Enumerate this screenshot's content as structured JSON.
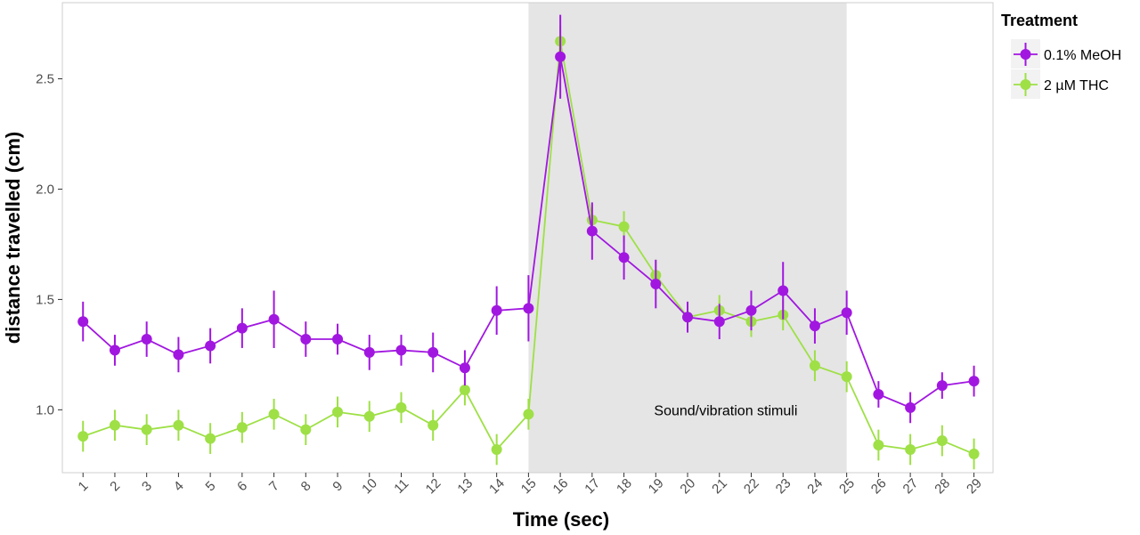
{
  "chart_data": {
    "type": "line",
    "xlabel": "Time (sec)",
    "ylabel": "distance travelled (cm)",
    "x": [
      1,
      2,
      3,
      4,
      5,
      6,
      7,
      8,
      9,
      10,
      11,
      12,
      13,
      14,
      15,
      16,
      17,
      18,
      19,
      20,
      21,
      22,
      23,
      24,
      25,
      26,
      27,
      28,
      29
    ],
    "xlim": [
      0.35,
      29.6
    ],
    "ylim": [
      0.715,
      2.845
    ],
    "yticks": [
      1.0,
      1.5,
      2.0,
      2.5
    ],
    "ytick_labels": [
      "1.0",
      "1.5",
      "2.0",
      "2.5"
    ],
    "grid": false,
    "legend": {
      "title": "Treatment",
      "position": "right"
    },
    "shaded_region": {
      "x_start": 15,
      "x_end": 25,
      "color": "#e5e5e5"
    },
    "annotation": {
      "text": "Sound/vibration stimuli",
      "x": 21.2,
      "y": 1.0
    },
    "series": [
      {
        "name": "0.1% MeOH",
        "color": "#a117e0",
        "values": [
          1.4,
          1.27,
          1.32,
          1.25,
          1.29,
          1.37,
          1.41,
          1.32,
          1.32,
          1.26,
          1.27,
          1.26,
          1.19,
          1.45,
          1.46,
          2.6,
          1.81,
          1.69,
          1.57,
          1.42,
          1.4,
          1.45,
          1.54,
          1.38,
          1.44,
          1.07,
          1.01,
          1.11,
          1.13
        ],
        "errors": [
          0.09,
          0.07,
          0.08,
          0.08,
          0.08,
          0.09,
          0.13,
          0.08,
          0.07,
          0.08,
          0.07,
          0.09,
          0.08,
          0.11,
          0.15,
          0.19,
          0.13,
          0.1,
          0.11,
          0.07,
          0.08,
          0.09,
          0.13,
          0.08,
          0.1,
          0.06,
          0.07,
          0.06,
          0.07
        ]
      },
      {
        "name": "2 µM THC",
        "color": "#9ee046",
        "values": [
          0.88,
          0.93,
          0.91,
          0.93,
          0.87,
          0.92,
          0.98,
          0.91,
          0.99,
          0.97,
          1.01,
          0.93,
          1.09,
          0.82,
          0.98,
          2.67,
          1.86,
          1.83,
          1.61,
          1.42,
          1.45,
          1.4,
          1.43,
          1.2,
          1.15,
          0.84,
          0.82,
          0.86,
          0.8
        ]
      }
    ]
  }
}
